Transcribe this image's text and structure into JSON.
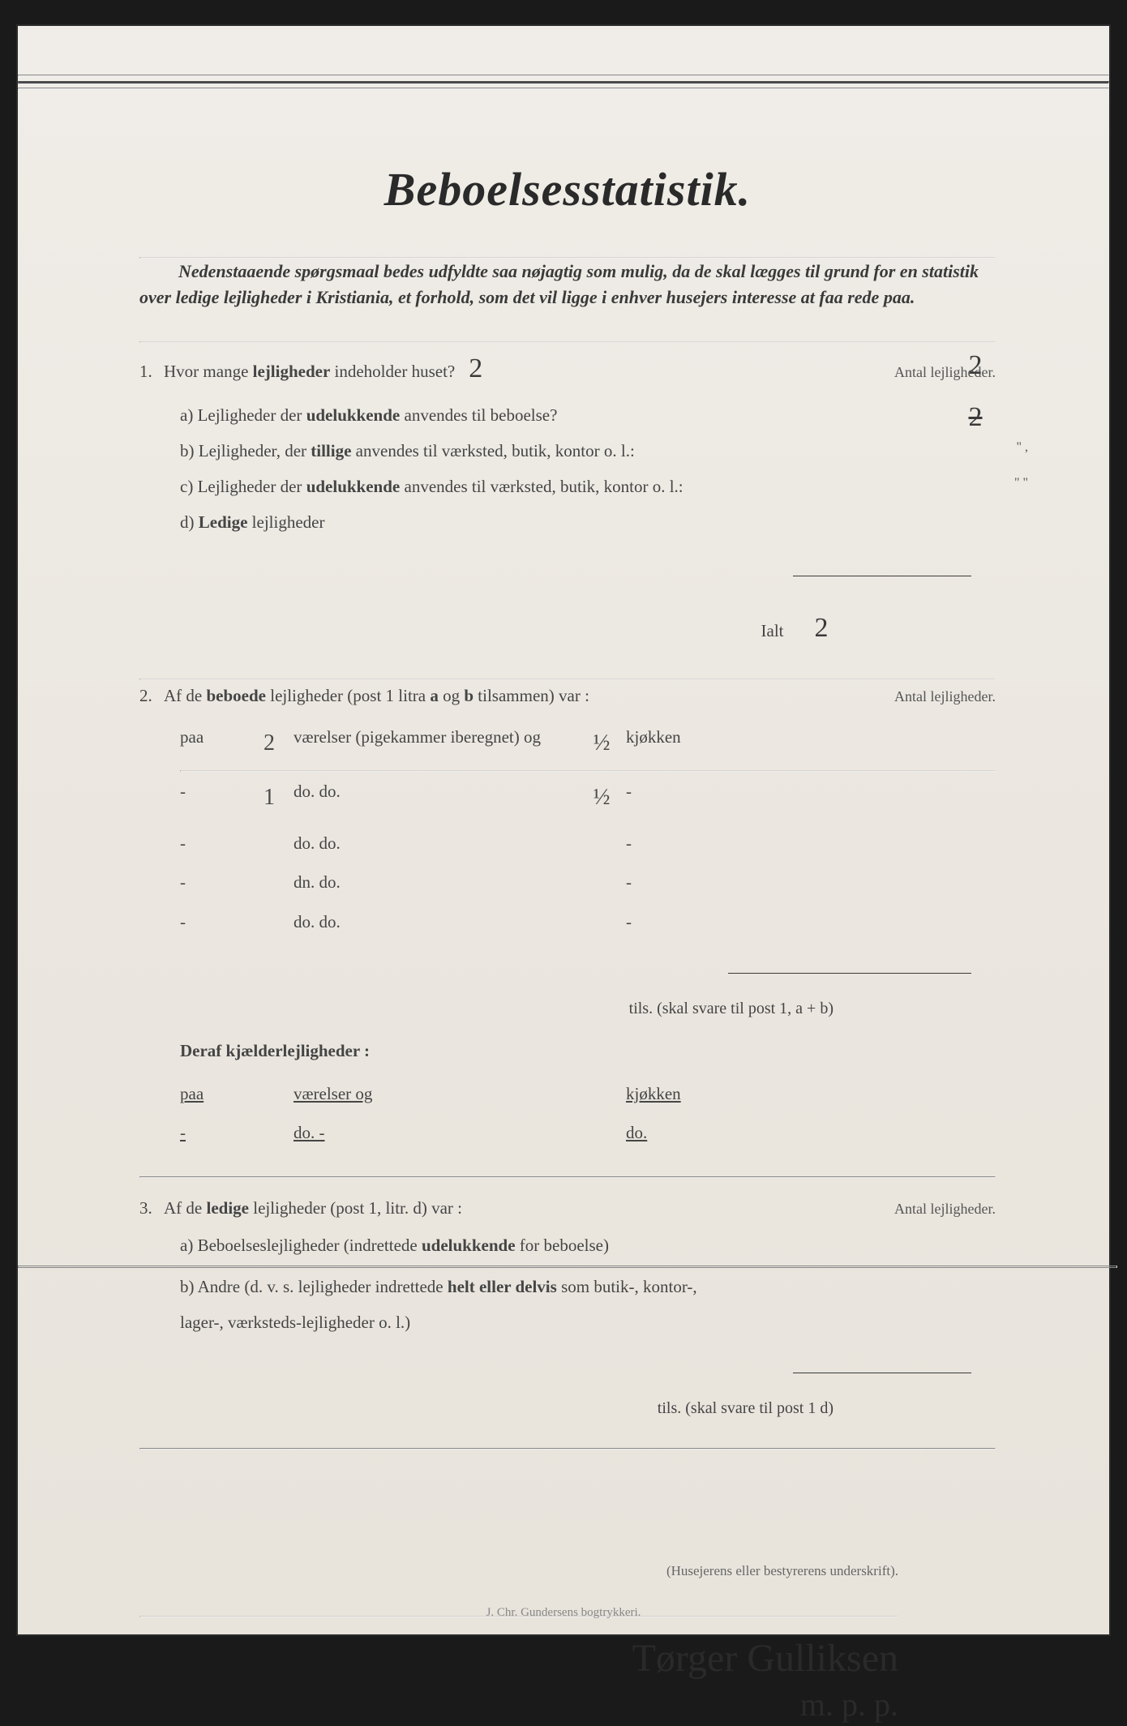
{
  "title": "Beboelsesstatistik.",
  "intro": "Nedenstaaende spørgsmaal bedes udfyldte saa nøjagtig som mulig, da de skal lægges til grund for en statistik over ledige lejligheder i Kristiania, et forhold, som det vil ligge i enhver husejers interesse at faa rede paa.",
  "q1": {
    "num": "1.",
    "text_pre": "Hvor mange ",
    "text_bold": "lejligheder",
    "text_post": " indeholder huset?",
    "answer": "2",
    "right_label": "Antal lejligheder.",
    "right_answers": [
      "2",
      "2"
    ],
    "a": {
      "label": "a)",
      "pre": "Lejligheder der ",
      "bold": "udelukkende",
      "post": " anvendes til beboelse?"
    },
    "b": {
      "label": "b)",
      "pre": "Lejligheder, der ",
      "bold": "tillige",
      "post": " anvendes til værksted, butik, kontor o. l.:",
      "tick": "\" ,"
    },
    "c": {
      "label": "c)",
      "pre": "Lejligheder der ",
      "bold": "udelukkende",
      "post": " anvendes til værksted, butik, kontor o. l.:",
      "tick": "\" \""
    },
    "d": {
      "label": "d)",
      "bold": "Ledige",
      "post": " lejligheder"
    },
    "ialt_label": "Ialt",
    "ialt_value": "2"
  },
  "q2": {
    "num": "2.",
    "pre": "Af de ",
    "bold1": "beboede",
    "mid": " lejligheder (post 1 litra ",
    "bold2": "a",
    "mid2": " og ",
    "bold3": "b",
    "post": " tilsammen) var :",
    "right_label": "Antal lejligheder.",
    "rows": [
      {
        "paa": "paa",
        "n1": "2",
        "vaer": "værelser (pigekammer iberegnet) og",
        "n2": "½",
        "kj": "kjøkken"
      },
      {
        "paa": "-",
        "n1": "1",
        "vaer": "do.                    do.",
        "n2": "½",
        "kj": "-"
      },
      {
        "paa": "-",
        "n1": "",
        "vaer": "do.                    do.",
        "n2": "",
        "kj": "-"
      },
      {
        "paa": "-",
        "n1": "",
        "vaer": "dn.                    do.",
        "n2": "",
        "kj": "-"
      },
      {
        "paa": "-",
        "n1": "",
        "vaer": "do.                    do.",
        "n2": "",
        "kj": "-"
      }
    ],
    "tils": "tils. (skal svare til post 1, a + b)",
    "deraf": "Deraf kjælderlejligheder :",
    "krows": [
      {
        "paa": "paa",
        "vaer": "værelser og",
        "kj": "kjøkken"
      },
      {
        "paa": "-",
        "vaer": "do.         -",
        "kj": "do."
      }
    ]
  },
  "q3": {
    "num": "3.",
    "pre": "Af de ",
    "bold": "ledige",
    "post": " lejligheder (post 1, litr. d) var :",
    "right_label": "Antal lejligheder.",
    "a": {
      "label": "a)",
      "pre": "Beboelseslejligheder (indrettede ",
      "bold": "udelukkende",
      "post": " for beboelse)"
    },
    "b": {
      "label": "b)",
      "pre": "Andre (d. v. s. lejligheder indrettede ",
      "bold": "helt eller delvis",
      "post": " som butik-, kontor-,",
      "line2": "lager-, værksteds-lejligheder o. l.)"
    },
    "tils": "tils. (skal svare til post 1 d)"
  },
  "sig": {
    "label": "(Husejerens eller bestyrerens underskrift).",
    "name": "Tørger Gulliksen",
    "sub": "m. p. p."
  },
  "footer": "J. Chr. Gundersens bogtrykkeri.",
  "colors": {
    "paper": "#ebe7e0",
    "ink": "#2a2a2a",
    "hand": "#3a3a3a"
  }
}
